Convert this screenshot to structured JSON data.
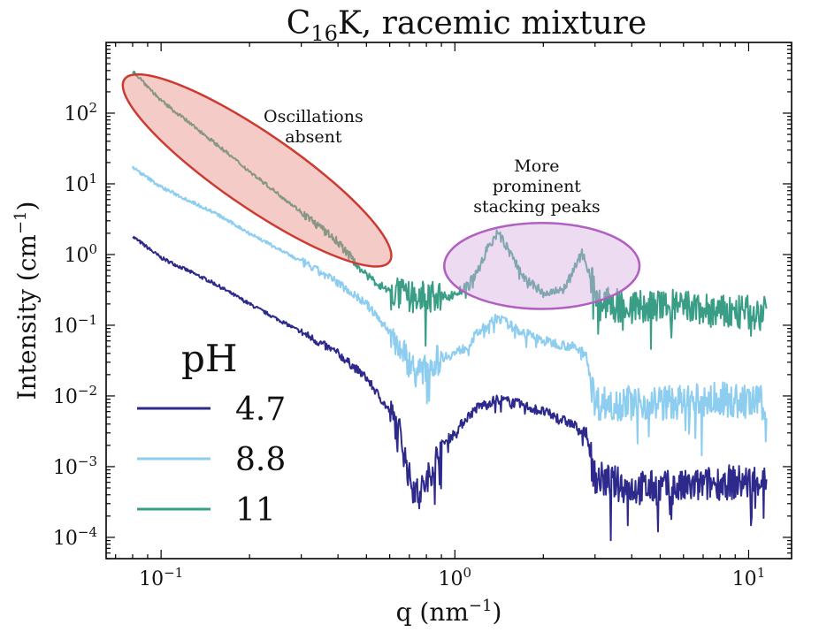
{
  "chart_data": {
    "type": "line",
    "title_main": "C",
    "title_sub": "16",
    "title_rest": "K, racemic mixture",
    "xlabel": "q (nm",
    "xlabel_exp": "−1",
    "xlabel_close": ")",
    "ylabel": "Intensity (cm",
    "ylabel_exp": "−1",
    "ylabel_close": ")",
    "x_scale": "log",
    "y_scale": "log",
    "xlim": [
      0.065,
      14
    ],
    "ylim": [
      5e-05,
      1000
    ],
    "x_ticks": [
      {
        "value": 0.1,
        "base": "10",
        "exp": "−1"
      },
      {
        "value": 1,
        "base": "10",
        "exp": "0"
      },
      {
        "value": 10,
        "base": "10",
        "exp": "1"
      }
    ],
    "y_ticks": [
      {
        "value": 0.0001,
        "base": "10",
        "exp": "−4"
      },
      {
        "value": 0.001,
        "base": "10",
        "exp": "−3"
      },
      {
        "value": 0.01,
        "base": "10",
        "exp": "−2"
      },
      {
        "value": 0.1,
        "base": "10",
        "exp": "−1"
      },
      {
        "value": 1,
        "base": "10",
        "exp": "0"
      },
      {
        "value": 10,
        "base": "10",
        "exp": "1"
      },
      {
        "value": 100,
        "base": "10",
        "exp": "2"
      }
    ],
    "grid": false,
    "legend": {
      "title": "pH",
      "placement": "bottom-left"
    },
    "series": [
      {
        "name": "4.7",
        "color": "#2e2a8c",
        "x": [
          0.08,
          0.1,
          0.15,
          0.2,
          0.3,
          0.4,
          0.5,
          0.6,
          0.65,
          0.7,
          0.75,
          0.8,
          0.9,
          1.0,
          1.1,
          1.2,
          1.3,
          1.4,
          1.6,
          2.0,
          2.5,
          2.8,
          3.0,
          4.0,
          6.0,
          8.0,
          10.0,
          11.5
        ],
        "y": [
          1.8,
          0.9,
          0.4,
          0.2,
          0.08,
          0.04,
          0.018,
          0.006,
          0.003,
          0.0007,
          0.0004,
          0.0006,
          0.002,
          0.003,
          0.005,
          0.007,
          0.008,
          0.009,
          0.008,
          0.006,
          0.004,
          0.003,
          0.0007,
          0.0005,
          0.0005,
          0.0006,
          0.0006,
          0.0007
        ]
      },
      {
        "name": "8.8",
        "color": "#8ccdf0",
        "x": [
          0.08,
          0.1,
          0.15,
          0.2,
          0.3,
          0.4,
          0.5,
          0.6,
          0.7,
          0.75,
          0.8,
          0.9,
          1.0,
          1.1,
          1.2,
          1.3,
          1.4,
          1.6,
          2.0,
          2.5,
          2.8,
          3.0,
          4.0,
          6.0,
          8.0,
          10.0,
          11.5
        ],
        "y": [
          17,
          9,
          4,
          2,
          0.8,
          0.4,
          0.2,
          0.08,
          0.03,
          0.02,
          0.025,
          0.035,
          0.04,
          0.05,
          0.08,
          0.1,
          0.13,
          0.09,
          0.06,
          0.05,
          0.04,
          0.008,
          0.008,
          0.008,
          0.009,
          0.008,
          0.008
        ]
      },
      {
        "name": "11",
        "color": "#3a9e87",
        "x": [
          0.08,
          0.1,
          0.15,
          0.2,
          0.3,
          0.4,
          0.5,
          0.6,
          0.7,
          0.8,
          0.9,
          1.0,
          1.1,
          1.2,
          1.3,
          1.4,
          1.5,
          1.7,
          2.0,
          2.3,
          2.5,
          2.7,
          2.9,
          3.1,
          4.0,
          6.0,
          8.0,
          10.0,
          11.5
        ],
        "y": [
          400,
          150,
          40,
          15,
          4,
          1.5,
          0.5,
          0.3,
          0.25,
          0.25,
          0.25,
          0.27,
          0.35,
          0.6,
          1.3,
          2.0,
          1.3,
          0.5,
          0.28,
          0.3,
          0.5,
          1.1,
          0.5,
          0.2,
          0.18,
          0.18,
          0.15,
          0.15,
          0.15
        ]
      }
    ],
    "annotations": [
      {
        "lines": [
          "Oscillations",
          "absent"
        ],
        "x": 0.33,
        "y": 75,
        "fill": "rgba(232,140,130,0.45)",
        "stroke": "#cc3a30",
        "ellipse": {
          "x_from": 0.075,
          "x_to": 0.6,
          "y_from": 0.8,
          "y_to": 300
        }
      },
      {
        "lines": [
          "More",
          "prominent",
          "stacking peaks"
        ],
        "x": 1.9,
        "y": 15,
        "fill": "rgba(215,175,225,0.45)",
        "stroke": "#b15fc0",
        "ellipse": {
          "x_from": 0.92,
          "x_to": 4.25,
          "y_from": 0.17,
          "y_to": 2.8
        }
      }
    ]
  }
}
